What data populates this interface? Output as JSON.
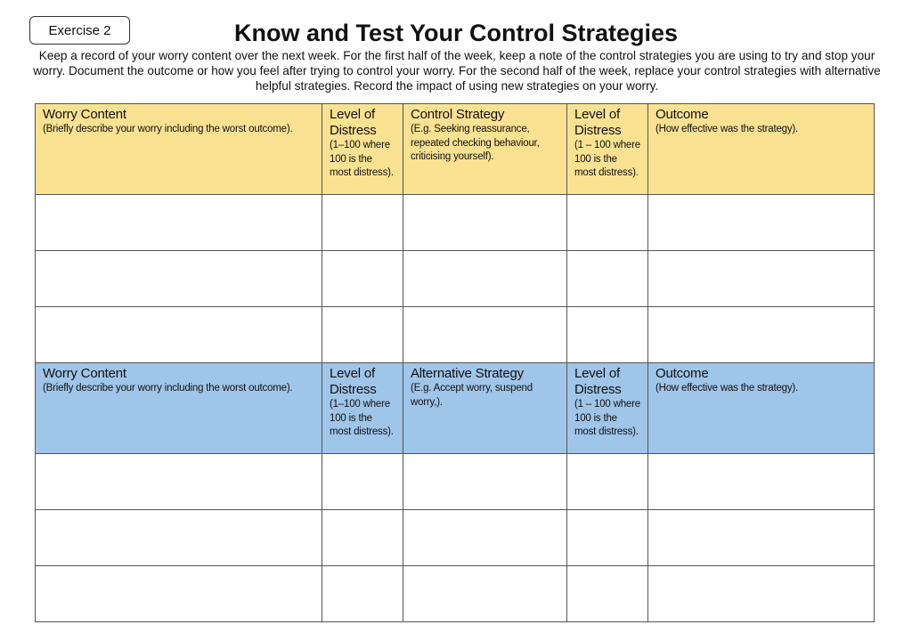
{
  "badge": "Exercise 2",
  "title": "Know and Test Your Control Strategies",
  "intro": "Keep a record of your worry content over the next week. For the first half of the week, keep a note of the control strategies you are using to try and stop your worry. Document the outcome or how you feel after trying to control your worry. For the second half of the week, replace your control strategies with alternative helpful strategies. Record the impact of using new strategies on your worry.",
  "colors": {
    "first_half_header": "#fbe292",
    "second_half_header": "#9fc5e8"
  },
  "table1": {
    "headers": [
      {
        "title": "Worry Content",
        "sub": "(Briefly describe your worry including the worst outcome)."
      },
      {
        "title": "Level of Distress",
        "sub": "(1–100 where 100 is the most distress)."
      },
      {
        "title": "Control Strategy",
        "sub": "(E.g. Seeking reassurance, repeated checking behaviour, criticising yourself)."
      },
      {
        "title": "Level of Distress",
        "sub": "(1 – 100 where 100 is the most distress)."
      },
      {
        "title": "Outcome",
        "sub": "(How effective was the strategy)."
      }
    ]
  },
  "table2": {
    "headers": [
      {
        "title": "Worry Content",
        "sub": "(Briefly describe your worry including the worst outcome)."
      },
      {
        "title": "Level of Distress",
        "sub": "(1–100 where 100 is the most distress)."
      },
      {
        "title": "Alternative Strategy",
        "sub": "(E.g. Accept worry, suspend worry,)."
      },
      {
        "title": "Level of Distress",
        "sub": "(1 – 100 where 100 is the most distress)."
      },
      {
        "title": "Outcome",
        "sub": "(How effective was the strategy)."
      }
    ]
  }
}
